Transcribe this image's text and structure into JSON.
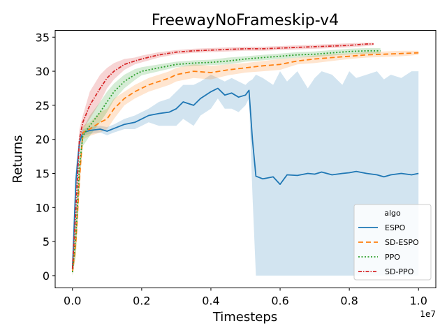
{
  "chart_data": {
    "type": "line",
    "title": "FreewayNoFrameskip-v4",
    "xlabel": "Timesteps",
    "ylabel": "Returns",
    "x_offset_label": "1e7",
    "xlim": [
      -0.05,
      1.05
    ],
    "ylim": [
      -1.8,
      36.0
    ],
    "xticks": [
      0.0,
      0.2,
      0.4,
      0.6,
      0.8,
      1.0
    ],
    "xtick_labels": [
      "0.0",
      "0.2",
      "0.4",
      "0.6",
      "0.8",
      "1.0"
    ],
    "yticks": [
      0,
      5,
      10,
      15,
      20,
      25,
      30,
      35
    ],
    "ytick_labels": [
      "0",
      "5",
      "10",
      "15",
      "20",
      "25",
      "30",
      "35"
    ],
    "grid": false,
    "legend": {
      "title": "algo",
      "placement": "bottom-right"
    },
    "series": [
      {
        "name": "ESPO",
        "color": "#1f77b4",
        "dash": "solid",
        "x": [
          0.0,
          0.01,
          0.02,
          0.03,
          0.05,
          0.08,
          0.1,
          0.12,
          0.15,
          0.18,
          0.2,
          0.22,
          0.25,
          0.28,
          0.3,
          0.32,
          0.35,
          0.37,
          0.4,
          0.42,
          0.44,
          0.46,
          0.48,
          0.5,
          0.51,
          0.52,
          0.53,
          0.55,
          0.58,
          0.6,
          0.62,
          0.65,
          0.68,
          0.7,
          0.72,
          0.75,
          0.78,
          0.8,
          0.82,
          0.85,
          0.88,
          0.9,
          0.92,
          0.95,
          0.98,
          1.0
        ],
        "y": [
          1.0,
          14.0,
          19.5,
          21.0,
          21.3,
          21.5,
          21.2,
          21.6,
          22.2,
          22.5,
          23.0,
          23.5,
          23.8,
          24.0,
          24.5,
          25.5,
          25.0,
          26.0,
          27.0,
          27.5,
          26.5,
          26.8,
          26.2,
          26.5,
          27.2,
          20.0,
          14.6,
          14.2,
          14.5,
          13.4,
          14.8,
          14.7,
          15.0,
          14.9,
          15.2,
          14.8,
          15.0,
          15.1,
          15.3,
          15.0,
          14.8,
          14.5,
          14.8,
          15.0,
          14.8,
          15.0
        ],
        "upper": [
          2.0,
          16.0,
          20.5,
          21.5,
          21.8,
          22.0,
          21.8,
          22.2,
          23.0,
          23.5,
          24.0,
          24.5,
          25.5,
          26.0,
          27.0,
          28.0,
          28.0,
          28.5,
          29.5,
          29.0,
          28.5,
          29.0,
          28.5,
          28.0,
          28.5,
          28.8,
          29.5,
          29.0,
          28.0,
          30.0,
          28.5,
          30.0,
          27.5,
          29.0,
          30.0,
          29.5,
          28.0,
          30.0,
          29.0,
          29.5,
          30.0,
          28.8,
          29.5,
          29.0,
          30.0,
          30.0
        ],
        "lower": [
          0.0,
          12.0,
          18.5,
          20.5,
          20.8,
          21.0,
          20.6,
          21.0,
          21.5,
          21.5,
          22.0,
          22.5,
          22.0,
          22.0,
          22.0,
          23.0,
          22.0,
          23.5,
          24.5,
          26.0,
          24.5,
          24.5,
          24.0,
          25.0,
          26.0,
          12.0,
          0.0,
          0.0,
          0.0,
          0.0,
          0.0,
          0.0,
          0.0,
          0.0,
          0.0,
          0.0,
          0.0,
          0.0,
          0.0,
          0.0,
          0.0,
          0.0,
          0.0,
          0.0,
          0.0,
          0.0
        ]
      },
      {
        "name": "SD-ESPO",
        "color": "#ff7f0e",
        "dash": "7,4",
        "x": [
          0.0,
          0.01,
          0.02,
          0.03,
          0.05,
          0.08,
          0.1,
          0.12,
          0.15,
          0.18,
          0.2,
          0.22,
          0.25,
          0.28,
          0.3,
          0.35,
          0.4,
          0.45,
          0.5,
          0.55,
          0.6,
          0.65,
          0.7,
          0.75,
          0.8,
          0.85,
          0.9,
          0.95,
          1.0
        ],
        "y": [
          0.5,
          5.0,
          14.0,
          21.0,
          21.5,
          22.5,
          23.0,
          24.5,
          26.0,
          27.0,
          27.5,
          28.0,
          28.5,
          29.0,
          29.5,
          30.0,
          29.8,
          30.2,
          30.5,
          30.8,
          31.0,
          31.5,
          31.8,
          32.0,
          32.2,
          32.4,
          32.5,
          32.6,
          32.7
        ],
        "upper": [
          1.0,
          7.0,
          16.0,
          22.0,
          22.5,
          24.0,
          24.5,
          26.0,
          27.0,
          28.0,
          28.5,
          29.0,
          29.5,
          30.0,
          30.5,
          31.0,
          30.8,
          31.0,
          31.2,
          31.5,
          31.8,
          32.0,
          32.3,
          32.5,
          32.6,
          32.8,
          32.9,
          33.0,
          33.0
        ],
        "lower": [
          0.0,
          3.0,
          12.0,
          20.0,
          20.5,
          21.0,
          21.5,
          23.0,
          25.0,
          26.0,
          26.5,
          27.0,
          27.5,
          28.0,
          28.5,
          29.0,
          28.8,
          29.4,
          29.8,
          30.0,
          30.2,
          31.0,
          31.2,
          31.5,
          31.8,
          32.0,
          32.1,
          32.2,
          32.4
        ]
      },
      {
        "name": "PPO",
        "color": "#2ca02c",
        "dash": "2,2.5",
        "x": [
          0.0,
          0.01,
          0.02,
          0.03,
          0.05,
          0.08,
          0.1,
          0.12,
          0.15,
          0.18,
          0.2,
          0.25,
          0.3,
          0.35,
          0.4,
          0.45,
          0.5,
          0.55,
          0.6,
          0.65,
          0.7,
          0.75,
          0.8,
          0.85,
          0.88,
          0.89
        ],
        "y": [
          0.5,
          6.0,
          16.0,
          20.5,
          22.0,
          24.0,
          25.5,
          27.0,
          28.5,
          29.5,
          30.0,
          30.5,
          31.0,
          31.2,
          31.3,
          31.5,
          31.8,
          32.0,
          32.2,
          32.4,
          32.5,
          32.7,
          32.9,
          33.0,
          33.0,
          33.0
        ],
        "upper": [
          1.0,
          9.0,
          18.0,
          21.5,
          23.5,
          25.5,
          27.0,
          28.2,
          29.5,
          30.3,
          30.6,
          31.0,
          31.4,
          31.6,
          31.7,
          32.0,
          32.2,
          32.4,
          32.6,
          32.8,
          32.9,
          33.1,
          33.3,
          33.4,
          33.4,
          33.4
        ],
        "lower": [
          0.0,
          3.0,
          14.0,
          19.0,
          20.5,
          22.5,
          24.0,
          25.8,
          27.5,
          28.7,
          29.4,
          30.0,
          30.6,
          30.8,
          30.9,
          31.0,
          31.4,
          31.6,
          31.8,
          32.0,
          32.1,
          32.3,
          32.5,
          32.6,
          32.6,
          32.6
        ]
      },
      {
        "name": "SD-PPO",
        "color": "#d62728",
        "dash": "5,2,1.5,2",
        "x": [
          0.0,
          0.01,
          0.02,
          0.03,
          0.05,
          0.08,
          0.1,
          0.12,
          0.15,
          0.18,
          0.2,
          0.25,
          0.3,
          0.35,
          0.4,
          0.45,
          0.5,
          0.55,
          0.6,
          0.65,
          0.7,
          0.75,
          0.8,
          0.85,
          0.87
        ],
        "y": [
          1.0,
          10.0,
          20.0,
          22.5,
          25.0,
          27.5,
          29.0,
          30.0,
          31.0,
          31.5,
          31.8,
          32.4,
          32.8,
          33.0,
          33.1,
          33.2,
          33.3,
          33.3,
          33.4,
          33.5,
          33.6,
          33.7,
          33.8,
          34.0,
          34.0
        ],
        "upper": [
          1.5,
          13.0,
          21.5,
          23.5,
          27.0,
          29.5,
          30.5,
          31.2,
          31.8,
          32.0,
          32.3,
          32.8,
          33.1,
          33.3,
          33.4,
          33.5,
          33.6,
          33.6,
          33.7,
          33.8,
          33.9,
          34.0,
          34.1,
          34.2,
          34.2
        ],
        "lower": [
          0.5,
          7.0,
          18.5,
          21.5,
          23.0,
          25.5,
          27.5,
          28.8,
          30.2,
          31.0,
          31.3,
          32.0,
          32.5,
          32.7,
          32.8,
          32.9,
          33.0,
          33.0,
          33.1,
          33.2,
          33.3,
          33.4,
          33.5,
          33.7,
          33.8
        ]
      }
    ]
  }
}
